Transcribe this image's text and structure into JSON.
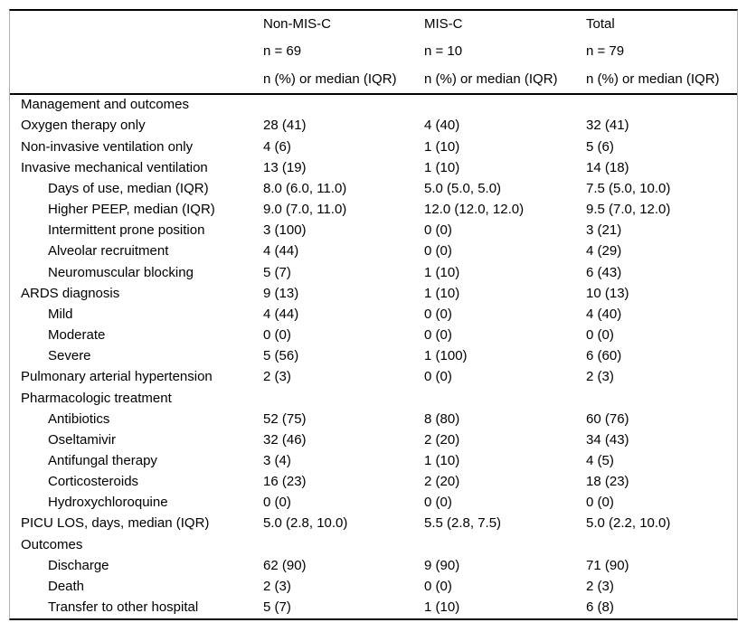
{
  "page": {
    "background_color": "#ffffff",
    "text_color": "#000000",
    "rule_color": "#000000",
    "side_border_color": "#b0b0b0"
  },
  "table": {
    "header": {
      "columns": [
        {
          "label": "Non-MIS-C",
          "n": "n = 69",
          "measure": "n (%) or median (IQR)"
        },
        {
          "label": "MIS-C",
          "n": "n = 10",
          "measure": "n (%) or median (IQR)"
        },
        {
          "label": "Total",
          "n": "n = 79",
          "measure": "n (%) or median (IQR)"
        }
      ]
    },
    "rows": [
      {
        "label": "Management and outcomes",
        "indent": 0,
        "values": [
          "",
          "",
          ""
        ]
      },
      {
        "label": "Oxygen therapy only",
        "indent": 0,
        "values": [
          "28 (41)",
          "4 (40)",
          "32 (41)"
        ]
      },
      {
        "label": "Non-invasive ventilation only",
        "indent": 0,
        "values": [
          "4 (6)",
          "1 (10)",
          "5 (6)"
        ]
      },
      {
        "label": "Invasive mechanical ventilation",
        "indent": 0,
        "values": [
          "13 (19)",
          "1 (10)",
          "14 (18)"
        ]
      },
      {
        "label": "Days of use, median (IQR)",
        "indent": 1,
        "values": [
          "8.0 (6.0, 11.0)",
          "5.0 (5.0, 5.0)",
          "7.5 (5.0, 10.0)"
        ]
      },
      {
        "label": "Higher PEEP, median (IQR)",
        "indent": 1,
        "values": [
          "9.0 (7.0, 11.0)",
          "12.0 (12.0, 12.0)",
          "9.5 (7.0, 12.0)"
        ]
      },
      {
        "label": "Intermittent prone position",
        "indent": 1,
        "values": [
          "3 (100)",
          "0 (0)",
          "3 (21)"
        ]
      },
      {
        "label": "Alveolar recruitment",
        "indent": 1,
        "values": [
          "4 (44)",
          "0 (0)",
          "4 (29)"
        ]
      },
      {
        "label": "Neuromuscular blocking",
        "indent": 1,
        "values": [
          "5 (7)",
          "1 (10)",
          "6 (43)"
        ]
      },
      {
        "label": "ARDS diagnosis",
        "indent": 0,
        "values": [
          "9 (13)",
          "1 (10)",
          "10 (13)"
        ]
      },
      {
        "label": "Mild",
        "indent": 1,
        "values": [
          "4 (44)",
          "0 (0)",
          "4 (40)"
        ]
      },
      {
        "label": "Moderate",
        "indent": 1,
        "values": [
          "0 (0)",
          "0 (0)",
          "0 (0)"
        ]
      },
      {
        "label": "Severe",
        "indent": 1,
        "values": [
          "5 (56)",
          "1 (100)",
          "6 (60)"
        ]
      },
      {
        "label": "Pulmonary arterial hypertension",
        "indent": 0,
        "values": [
          "2 (3)",
          "0 (0)",
          "2 (3)"
        ]
      },
      {
        "label": "Pharmacologic treatment",
        "indent": 0,
        "values": [
          "",
          "",
          ""
        ]
      },
      {
        "label": "Antibiotics",
        "indent": 1,
        "values": [
          "52 (75)",
          "8 (80)",
          "60 (76)"
        ]
      },
      {
        "label": "Oseltamivir",
        "indent": 1,
        "values": [
          "32 (46)",
          "2 (20)",
          "34 (43)"
        ]
      },
      {
        "label": "Antifungal therapy",
        "indent": 1,
        "values": [
          "3 (4)",
          "1 (10)",
          "4 (5)"
        ]
      },
      {
        "label": "Corticosteroids",
        "indent": 1,
        "values": [
          "16 (23)",
          "2 (20)",
          "18 (23)"
        ]
      },
      {
        "label": "Hydroxychloroquine",
        "indent": 1,
        "values": [
          "0 (0)",
          "0 (0)",
          "0 (0)"
        ]
      },
      {
        "label": "PICU LOS, days, median (IQR)",
        "indent": 0,
        "values": [
          "5.0 (2.8, 10.0)",
          "5.5 (2.8, 7.5)",
          "5.0 (2.2, 10.0)"
        ]
      },
      {
        "label": "Outcomes",
        "indent": 0,
        "values": [
          "",
          "",
          ""
        ]
      },
      {
        "label": "Discharge",
        "indent": 1,
        "values": [
          "62 (90)",
          "9 (90)",
          "71 (90)"
        ]
      },
      {
        "label": "Death",
        "indent": 1,
        "values": [
          "2 (3)",
          "0 (0)",
          "2 (3)"
        ]
      },
      {
        "label": "Transfer to other hospital",
        "indent": 1,
        "values": [
          "5 (7)",
          "1 (10)",
          "6 (8)"
        ]
      }
    ]
  }
}
